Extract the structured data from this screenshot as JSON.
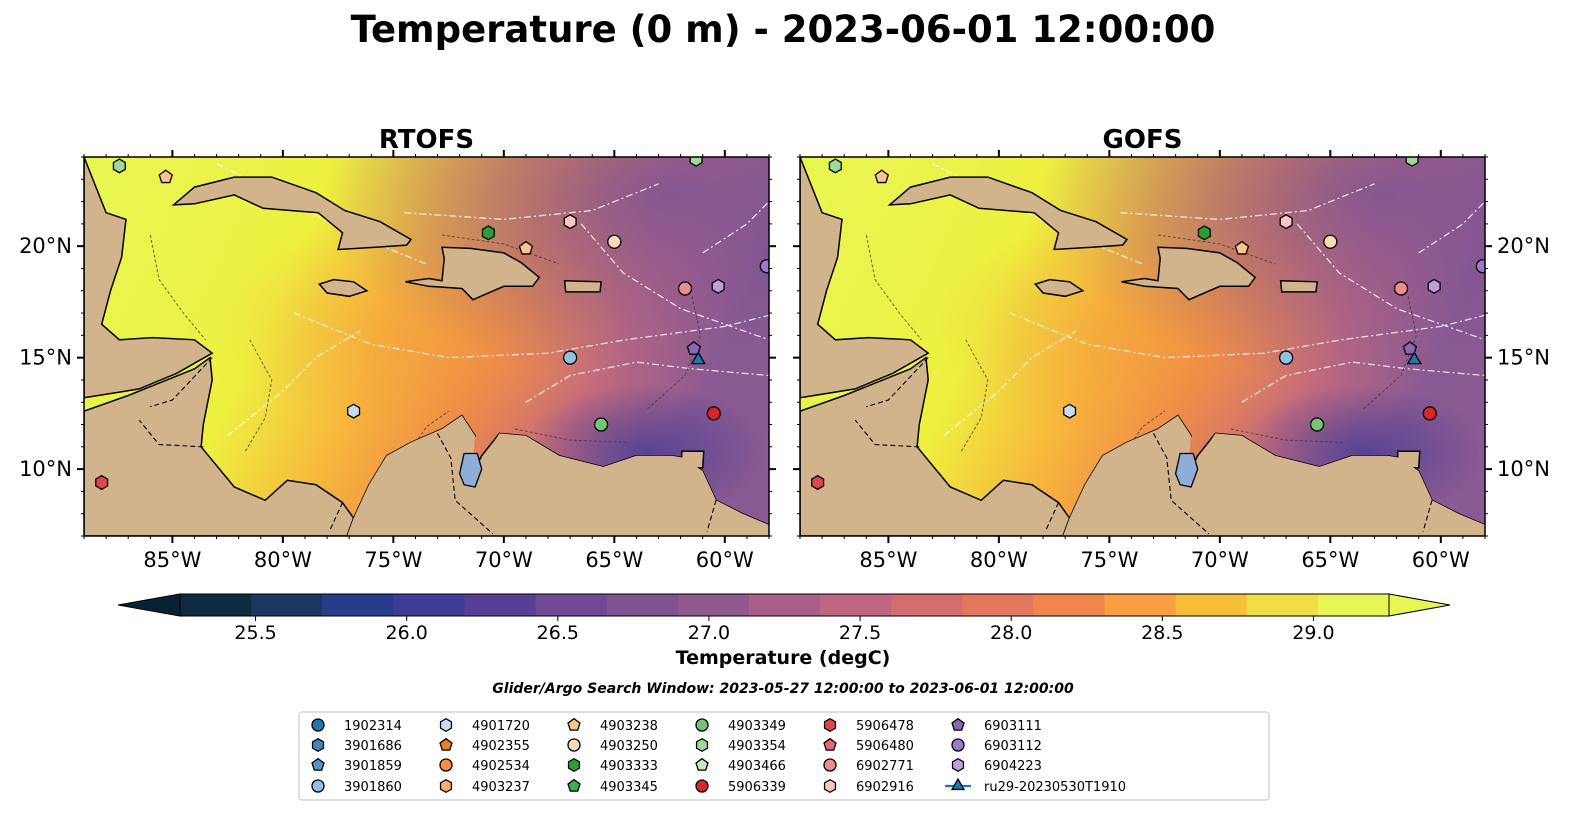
{
  "figure": {
    "title": "Temperature (0 m) - 2023-06-01 12:00:00",
    "search_window": "Glider/Argo Search Window: 2023-05-27 12:00:00 to 2023-06-01 12:00:00"
  },
  "chart_data": {
    "type": "heatmap",
    "title": "Temperature (0 m) - 2023-06-01 12:00:00",
    "panels": [
      {
        "title": "RTOFS",
        "lat_ticks_side": "left"
      },
      {
        "title": "GOFS",
        "lat_ticks_side": "right"
      }
    ],
    "extent": {
      "lon": [
        -89,
        -58
      ],
      "lat": [
        7,
        24
      ]
    },
    "x_ticks": [
      {
        "value": -85,
        "label": "85°W"
      },
      {
        "value": -80,
        "label": "80°W"
      },
      {
        "value": -75,
        "label": "75°W"
      },
      {
        "value": -70,
        "label": "70°W"
      },
      {
        "value": -65,
        "label": "65°W"
      },
      {
        "value": -60,
        "label": "60°W"
      }
    ],
    "y_ticks": [
      {
        "value": 20,
        "label": "20°N"
      },
      {
        "value": 15,
        "label": "15°N"
      },
      {
        "value": 10,
        "label": "10°N"
      }
    ],
    "colorbar": {
      "label": "Temperature (degC)",
      "range": [
        25.25,
        29.25
      ],
      "step": 0.25,
      "ticks": [
        {
          "value": 25.5,
          "label": "25.5"
        },
        {
          "value": 26.0,
          "label": "26.0"
        },
        {
          "value": 26.5,
          "label": "26.5"
        },
        {
          "value": 27.0,
          "label": "27.0"
        },
        {
          "value": 27.5,
          "label": "27.5"
        },
        {
          "value": 28.0,
          "label": "28.0"
        },
        {
          "value": 28.5,
          "label": "28.5"
        },
        {
          "value": 29.0,
          "label": "29.0"
        }
      ],
      "colors": [
        "#0e2a3f",
        "#1b3565",
        "#273d8c",
        "#3f3c98",
        "#583f96",
        "#6d4a93",
        "#7e5392",
        "#915a8e",
        "#a8608a",
        "#c06680",
        "#d46d6f",
        "#e3785e",
        "#f0864c",
        "#f99f3f",
        "#f7be3a",
        "#f1de45",
        "#e8f653"
      ],
      "under_color": "#072233",
      "over_color": "#e8f653"
    },
    "series": [
      {
        "name": "1902314",
        "marker": "circle",
        "color": "#1f77b4"
      },
      {
        "name": "3901686",
        "marker": "hexagon",
        "color": "#3b87c2"
      },
      {
        "name": "3901859",
        "marker": "pentagon",
        "color": "#4f98cf"
      },
      {
        "name": "3901860",
        "marker": "circle",
        "color": "#8fc0e5",
        "points": [
          [
            -67,
            15
          ]
        ]
      },
      {
        "name": "4901720",
        "marker": "hexagon",
        "color": "#c6dcf3",
        "points": [
          [
            -76.8,
            12.6
          ]
        ]
      },
      {
        "name": "4902355",
        "marker": "pentagon",
        "color": "#ee7f1e"
      },
      {
        "name": "4902534",
        "marker": "circle",
        "color": "#fd8d3c"
      },
      {
        "name": "4903237",
        "marker": "hexagon",
        "color": "#fdae6b"
      },
      {
        "name": "4903238",
        "marker": "pentagon",
        "color": "#fdc38d",
        "points": [
          [
            -85.3,
            23.1
          ],
          [
            -69,
            19.9
          ]
        ]
      },
      {
        "name": "4903250",
        "marker": "circle",
        "color": "#fdd9b5",
        "points": [
          [
            -65,
            20.2
          ]
        ]
      },
      {
        "name": "4903333",
        "marker": "hexagon",
        "color": "#2ca02c",
        "points": [
          [
            -70.7,
            20.6
          ]
        ]
      },
      {
        "name": "4903345",
        "marker": "pentagon",
        "color": "#3cb04a"
      },
      {
        "name": "4903349",
        "marker": "circle",
        "color": "#74c476",
        "points": [
          [
            -65.6,
            12
          ]
        ]
      },
      {
        "name": "4903354",
        "marker": "hexagon",
        "color": "#a1d99b",
        "points": [
          [
            -87.4,
            23.6
          ],
          [
            -61.3,
            23.9
          ]
        ]
      },
      {
        "name": "4903466",
        "marker": "pentagon",
        "color": "#c7e9c0"
      },
      {
        "name": "5906339",
        "marker": "circle",
        "color": "#d62728",
        "points": [
          [
            -60.5,
            12.5
          ]
        ]
      },
      {
        "name": "5906478",
        "marker": "hexagon",
        "color": "#e0474b",
        "points": [
          [
            -88.2,
            9.4
          ]
        ]
      },
      {
        "name": "5906480",
        "marker": "pentagon",
        "color": "#e9676c"
      },
      {
        "name": "6902771",
        "marker": "circle",
        "color": "#f28c8c",
        "points": [
          [
            -61.8,
            18.1
          ]
        ]
      },
      {
        "name": "6902916",
        "marker": "hexagon",
        "color": "#fcc5c0",
        "points": [
          [
            -67,
            21.1
          ]
        ]
      },
      {
        "name": "6903111",
        "marker": "pentagon",
        "color": "#8c64b8",
        "points": [
          [
            -61.4,
            15.4
          ]
        ]
      },
      {
        "name": "6903112",
        "marker": "circle",
        "color": "#a275cf",
        "points": [
          [
            -58.1,
            19.1
          ]
        ]
      },
      {
        "name": "6904223",
        "marker": "hexagon",
        "color": "#bf9ee0",
        "points": [
          [
            -60.3,
            18.2
          ]
        ]
      },
      {
        "name": "ru29-20230530T1910",
        "marker": "triangle",
        "color": "#1f77b4",
        "points": [
          [
            -61.2,
            14.9
          ]
        ]
      }
    ]
  }
}
